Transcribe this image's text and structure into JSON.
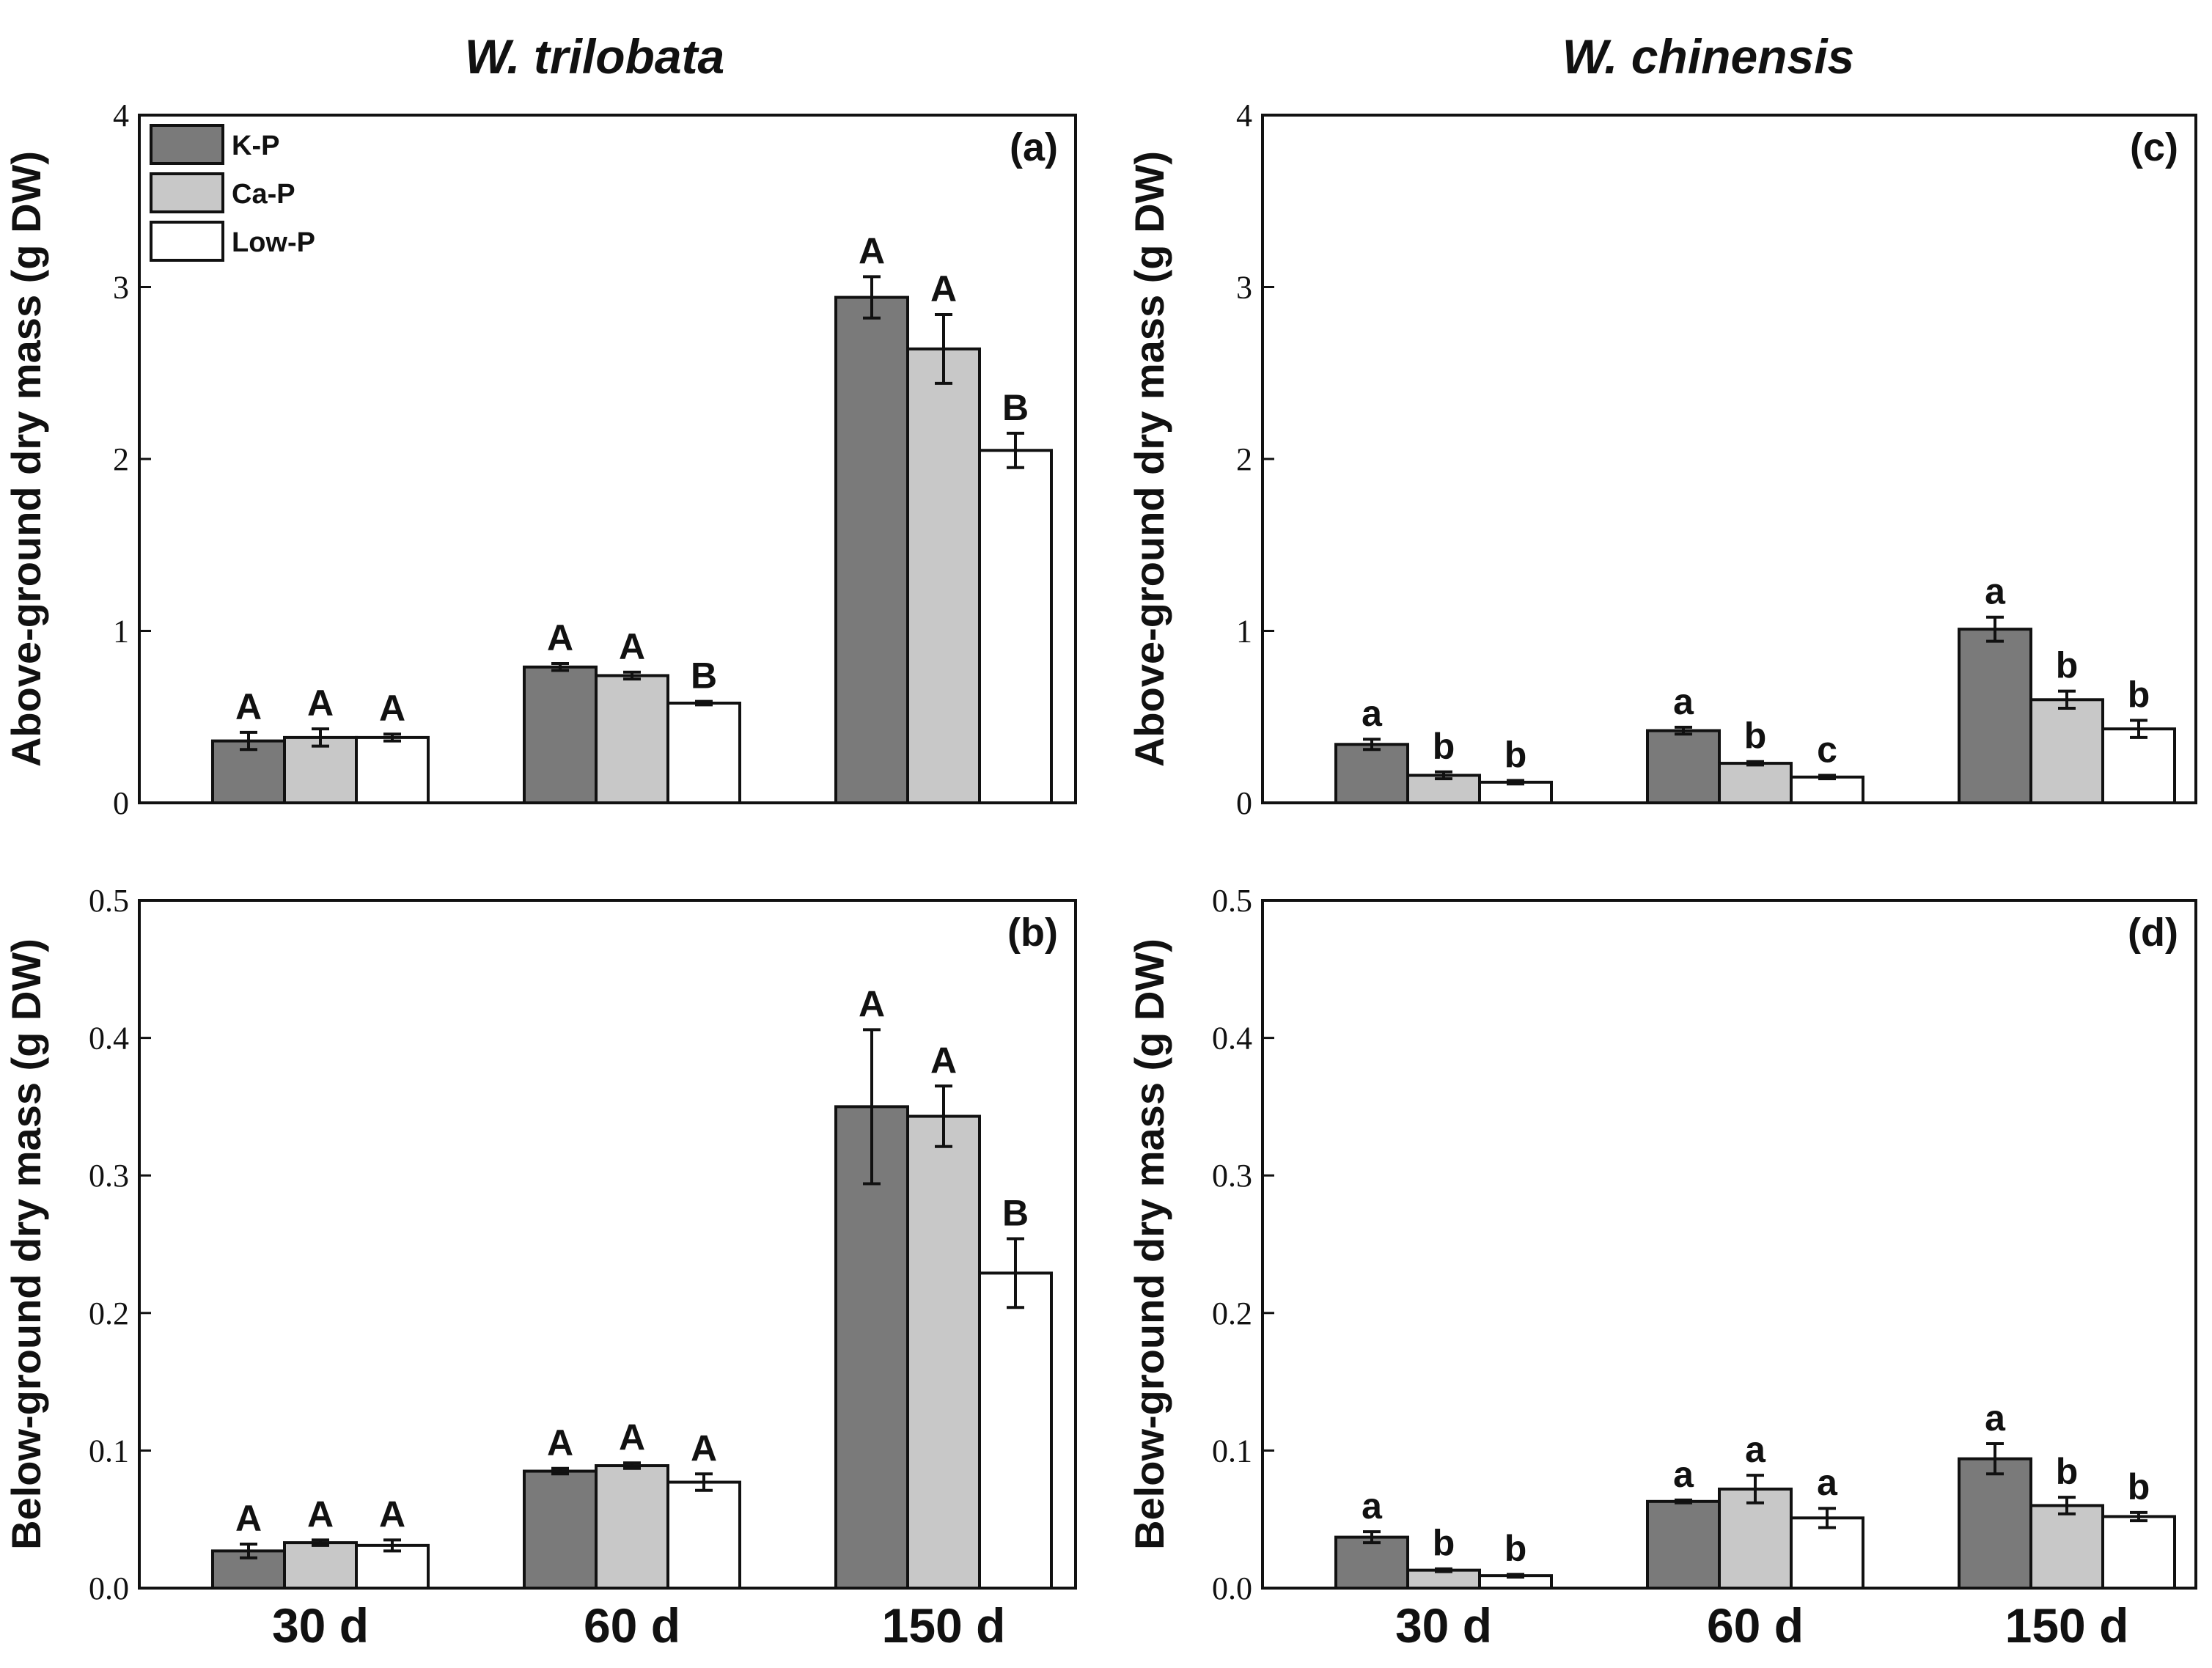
{
  "colors": {
    "K-P": "#7a7a7a",
    "Ca-P": "#c8c8c8",
    "Low-P": "#ffffff",
    "stroke": "#111111"
  },
  "species_titles": [
    "W. trilobata",
    "W. chinensis"
  ],
  "legend": [
    "K-P",
    "Ca-P",
    "Low-P"
  ],
  "chart_data": [
    {
      "type": "bar",
      "id": "a",
      "panel_label": "(a)",
      "species": "W. trilobata",
      "ylabel": "Above-ground dry mass (g DW)",
      "ylim": [
        0,
        4
      ],
      "yticks": [
        0,
        1,
        2,
        3,
        4
      ],
      "ytick_labels": [
        "0",
        "1",
        "2",
        "3",
        "4"
      ],
      "categories": [
        "30 d",
        "60 d",
        "150 d"
      ],
      "show_xticks": false,
      "series": [
        {
          "name": "K-P",
          "values": [
            0.36,
            0.79,
            2.94
          ],
          "errors": [
            0.05,
            0.02,
            0.12
          ],
          "letters": [
            "A",
            "A",
            "A"
          ]
        },
        {
          "name": "Ca-P",
          "values": [
            0.38,
            0.74,
            2.64
          ],
          "errors": [
            0.05,
            0.02,
            0.2
          ],
          "letters": [
            "A",
            "A",
            "A"
          ]
        },
        {
          "name": "Low-P",
          "values": [
            0.38,
            0.58,
            2.05
          ],
          "errors": [
            0.02,
            0.01,
            0.1
          ],
          "letters": [
            "A",
            "B",
            "B"
          ]
        }
      ]
    },
    {
      "type": "bar",
      "id": "b",
      "panel_label": "(b)",
      "species": "W. trilobata",
      "ylabel": "Below-ground dry mass (g DW)",
      "ylim": [
        0,
        0.5
      ],
      "yticks": [
        0,
        0.1,
        0.2,
        0.3,
        0.4,
        0.5
      ],
      "ytick_labels": [
        "0.0",
        "0.1",
        "0.2",
        "0.3",
        "0.4",
        "0.5"
      ],
      "categories": [
        "30 d",
        "60 d",
        "150 d"
      ],
      "show_xticks": true,
      "series": [
        {
          "name": "K-P",
          "values": [
            0.027,
            0.085,
            0.35
          ],
          "errors": [
            0.005,
            0.002,
            0.056
          ],
          "letters": [
            "A",
            "A",
            "A"
          ]
        },
        {
          "name": "Ca-P",
          "values": [
            0.033,
            0.089,
            0.343
          ],
          "errors": [
            0.002,
            0.002,
            0.022
          ],
          "letters": [
            "A",
            "A",
            "A"
          ]
        },
        {
          "name": "Low-P",
          "values": [
            0.031,
            0.077,
            0.229
          ],
          "errors": [
            0.004,
            0.006,
            0.025
          ],
          "letters": [
            "A",
            "A",
            "B"
          ]
        }
      ]
    },
    {
      "type": "bar",
      "id": "c",
      "panel_label": "(c)",
      "species": "W. chinensis",
      "ylabel": "Above-ground dry mass (g DW)",
      "ylim": [
        0,
        4
      ],
      "yticks": [
        0,
        1,
        2,
        3,
        4
      ],
      "ytick_labels": [
        "0",
        "1",
        "2",
        "3",
        "4"
      ],
      "categories": [
        "30 d",
        "60 d",
        "150 d"
      ],
      "show_xticks": false,
      "series": [
        {
          "name": "K-P",
          "values": [
            0.34,
            0.42,
            1.01
          ],
          "errors": [
            0.03,
            0.02,
            0.07
          ],
          "letters": [
            "a",
            "a",
            "a"
          ]
        },
        {
          "name": "Ca-P",
          "values": [
            0.16,
            0.23,
            0.6
          ],
          "errors": [
            0.02,
            0.01,
            0.05
          ],
          "letters": [
            "b",
            "b",
            "b"
          ]
        },
        {
          "name": "Low-P",
          "values": [
            0.12,
            0.15,
            0.43
          ],
          "errors": [
            0.01,
            0.01,
            0.05
          ],
          "letters": [
            "b",
            "c",
            "b"
          ]
        }
      ]
    },
    {
      "type": "bar",
      "id": "d",
      "panel_label": "(d)",
      "species": "W. chinensis",
      "ylabel": "Below-ground dry mass (g DW)",
      "ylim": [
        0,
        0.5
      ],
      "yticks": [
        0,
        0.1,
        0.2,
        0.3,
        0.4,
        0.5
      ],
      "ytick_labels": [
        "0.0",
        "0.1",
        "0.2",
        "0.3",
        "0.4",
        "0.5"
      ],
      "categories": [
        "30 d",
        "60 d",
        "150 d"
      ],
      "show_xticks": true,
      "series": [
        {
          "name": "K-P",
          "values": [
            0.037,
            0.063,
            0.094
          ],
          "errors": [
            0.004,
            0.001,
            0.011
          ],
          "letters": [
            "a",
            "a",
            "a"
          ]
        },
        {
          "name": "Ca-P",
          "values": [
            0.013,
            0.072,
            0.06
          ],
          "errors": [
            0.001,
            0.01,
            0.006
          ],
          "letters": [
            "b",
            "a",
            "b"
          ]
        },
        {
          "name": "Low-P",
          "values": [
            0.009,
            0.051,
            0.052
          ],
          "errors": [
            0.001,
            0.007,
            0.003
          ],
          "letters": [
            "b",
            "a",
            "b"
          ]
        }
      ]
    }
  ]
}
